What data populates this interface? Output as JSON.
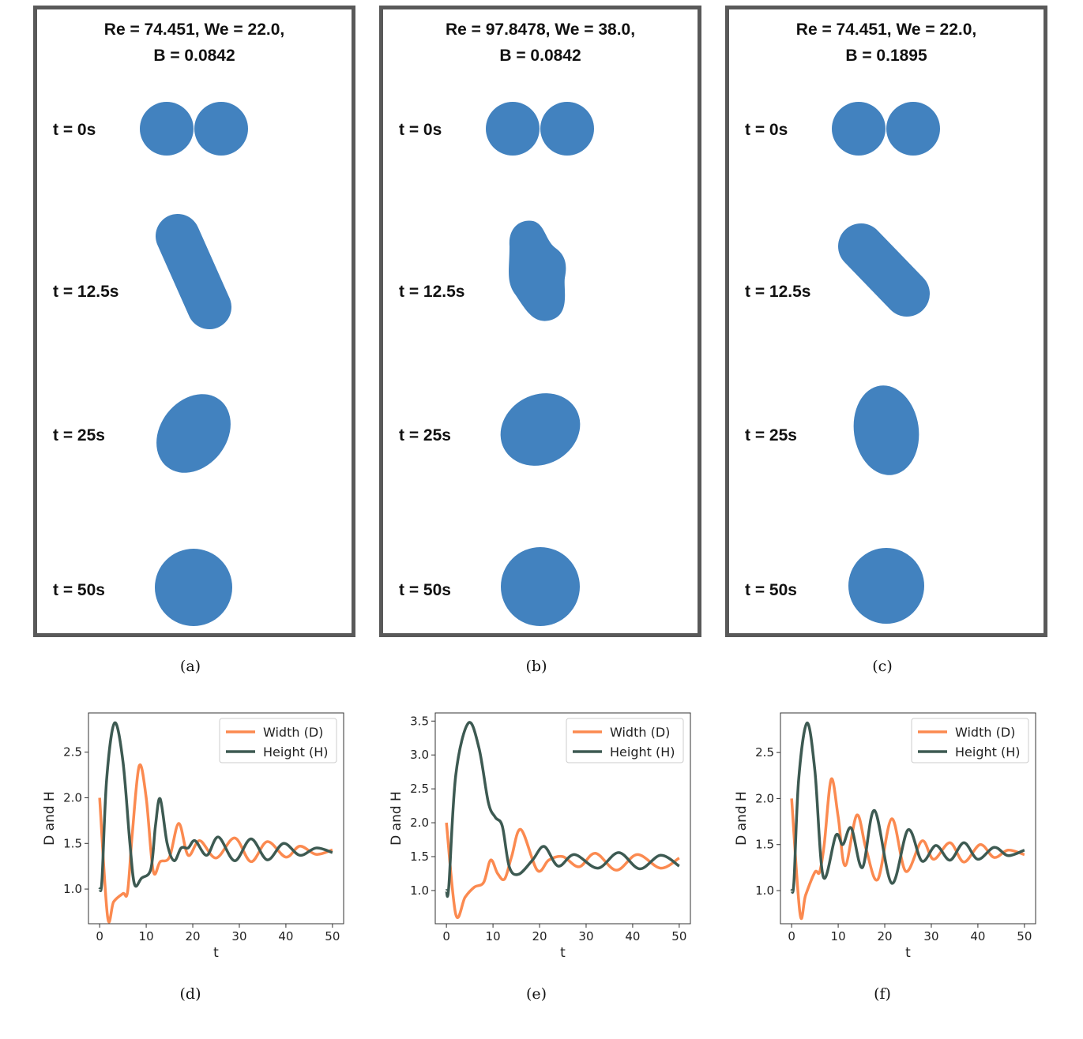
{
  "panels": [
    {
      "id": "a",
      "title_line1": "Re = 74.451, We = 22.0,",
      "title_line2": "B = 0.0842",
      "times": [
        "t = 0s",
        "t = 12.5s",
        "t = 25s",
        "t = 50s"
      ],
      "caption": "(a)"
    },
    {
      "id": "b",
      "title_line1": "Re = 97.8478, We = 38.0,",
      "title_line2": "B = 0.0842",
      "times": [
        "t = 0s",
        "t = 12.5s",
        "t = 25s",
        "t = 50s"
      ],
      "caption": "(b)"
    },
    {
      "id": "c",
      "title_line1": "Re = 74.451, We = 22.0,",
      "title_line2": "B = 0.1895",
      "times": [
        "t = 0s",
        "t = 12.5s",
        "t = 25s",
        "t = 50s"
      ],
      "caption": "(c)"
    }
  ],
  "droplet_color": "#4282bf",
  "chart_data": [
    {
      "type": "line",
      "caption": "(d)",
      "xlabel": "t",
      "ylabel": "D and H",
      "xlim": [
        -2.4,
        52.4
      ],
      "ylim": [
        0.62,
        2.93
      ],
      "xticks": [
        0,
        10,
        20,
        30,
        40,
        50
      ],
      "yticks": [
        "1.0",
        "1.5",
        "2.0",
        "2.5"
      ],
      "legend": "top-right",
      "grid": false,
      "series": [
        {
          "name": "Width (D)",
          "color": "#fb8a50",
          "points": [
            [
              0,
              2.0
            ],
            [
              1.7,
              0.7
            ],
            [
              3,
              0.86
            ],
            [
              5,
              0.95
            ],
            [
              6,
              0.97
            ],
            [
              7,
              1.6
            ],
            [
              8.5,
              2.35
            ],
            [
              10,
              2.0
            ],
            [
              11.5,
              1.2
            ],
            [
              13,
              1.3
            ],
            [
              15,
              1.35
            ],
            [
              17,
              1.72
            ],
            [
              19,
              1.37
            ],
            [
              21.5,
              1.53
            ],
            [
              25,
              1.34
            ],
            [
              29,
              1.56
            ],
            [
              32.5,
              1.3
            ],
            [
              36,
              1.52
            ],
            [
              40,
              1.35
            ],
            [
              43,
              1.47
            ],
            [
              46.5,
              1.38
            ],
            [
              50,
              1.43
            ]
          ]
        },
        {
          "name": "Height (H)",
          "color": "#3d5a52",
          "points": [
            [
              0,
              1.0
            ],
            [
              0.5,
              1.1
            ],
            [
              1.5,
              2.2
            ],
            [
              3.2,
              2.82
            ],
            [
              5,
              2.4
            ],
            [
              6.5,
              1.5
            ],
            [
              7.5,
              1.05
            ],
            [
              9,
              1.12
            ],
            [
              11,
              1.22
            ],
            [
              12,
              1.7
            ],
            [
              13,
              1.99
            ],
            [
              14.5,
              1.5
            ],
            [
              16,
              1.31
            ],
            [
              17.5,
              1.45
            ],
            [
              19,
              1.45
            ],
            [
              20.5,
              1.53
            ],
            [
              23,
              1.37
            ],
            [
              25.5,
              1.57
            ],
            [
              29,
              1.31
            ],
            [
              32.5,
              1.55
            ],
            [
              36,
              1.32
            ],
            [
              39.5,
              1.5
            ],
            [
              43,
              1.37
            ],
            [
              46.5,
              1.45
            ],
            [
              50,
              1.4
            ]
          ]
        }
      ]
    },
    {
      "type": "line",
      "caption": "(e)",
      "xlabel": "t",
      "ylabel": "D and H",
      "xlim": [
        -2.4,
        52.4
      ],
      "ylim": [
        0.51,
        3.62
      ],
      "xticks": [
        0,
        10,
        20,
        30,
        40,
        50
      ],
      "yticks": [
        "1.0",
        "1.5",
        "2.0",
        "2.5",
        "3.0",
        "3.5"
      ],
      "legend": "top-right",
      "grid": false,
      "series": [
        {
          "name": "Width (D)",
          "color": "#fb8a50",
          "points": [
            [
              0,
              2.0
            ],
            [
              2,
              0.65
            ],
            [
              4,
              0.9
            ],
            [
              6,
              1.05
            ],
            [
              8,
              1.12
            ],
            [
              9.5,
              1.45
            ],
            [
              11,
              1.25
            ],
            [
              12.5,
              1.17
            ],
            [
              14,
              1.5
            ],
            [
              16,
              1.9
            ],
            [
              19.5,
              1.3
            ],
            [
              22,
              1.45
            ],
            [
              25,
              1.5
            ],
            [
              28.5,
              1.35
            ],
            [
              32,
              1.55
            ],
            [
              36.5,
              1.3
            ],
            [
              41,
              1.53
            ],
            [
              46,
              1.33
            ],
            [
              50,
              1.48
            ]
          ]
        },
        {
          "name": "Height (H)",
          "color": "#3d5a52",
          "points": [
            [
              0,
              1.0
            ],
            [
              0.5,
              1.05
            ],
            [
              2,
              2.7
            ],
            [
              4.7,
              3.47
            ],
            [
              7,
              3.1
            ],
            [
              9,
              2.3
            ],
            [
              10.5,
              2.08
            ],
            [
              12,
              1.95
            ],
            [
              13.5,
              1.35
            ],
            [
              15.5,
              1.24
            ],
            [
              18.5,
              1.45
            ],
            [
              21,
              1.65
            ],
            [
              24,
              1.36
            ],
            [
              27.5,
              1.53
            ],
            [
              32.5,
              1.33
            ],
            [
              37,
              1.56
            ],
            [
              41.5,
              1.32
            ],
            [
              46,
              1.52
            ],
            [
              50,
              1.36
            ]
          ]
        }
      ]
    },
    {
      "type": "line",
      "caption": "(f)",
      "xlabel": "t",
      "ylabel": "D and H",
      "xlim": [
        -2.4,
        52.4
      ],
      "ylim": [
        0.64,
        2.93
      ],
      "xticks": [
        0,
        10,
        20,
        30,
        40,
        50
      ],
      "yticks": [
        "1.0",
        "1.5",
        "2.0",
        "2.5"
      ],
      "legend": "top-right",
      "grid": false,
      "series": [
        {
          "name": "Width (D)",
          "color": "#fb8a50",
          "points": [
            [
              0,
              2.0
            ],
            [
              1.8,
              0.75
            ],
            [
              3,
              0.95
            ],
            [
              5,
              1.2
            ],
            [
              6,
              1.2
            ],
            [
              7,
              1.5
            ],
            [
              8.5,
              2.21
            ],
            [
              10,
              1.8
            ],
            [
              11.5,
              1.27
            ],
            [
              14,
              1.82
            ],
            [
              16,
              1.45
            ],
            [
              18.5,
              1.12
            ],
            [
              21.5,
              1.78
            ],
            [
              24.5,
              1.21
            ],
            [
              28,
              1.54
            ],
            [
              30.5,
              1.34
            ],
            [
              34,
              1.52
            ],
            [
              37,
              1.31
            ],
            [
              40.5,
              1.5
            ],
            [
              43.5,
              1.36
            ],
            [
              46.5,
              1.44
            ],
            [
              50,
              1.39
            ]
          ]
        },
        {
          "name": "Height (H)",
          "color": "#3d5a52",
          "points": [
            [
              0,
              1.0
            ],
            [
              0.5,
              1.1
            ],
            [
              1.5,
              2.2
            ],
            [
              3.3,
              2.82
            ],
            [
              5,
              2.3
            ],
            [
              6.8,
              1.15
            ],
            [
              9.5,
              1.6
            ],
            [
              11,
              1.5
            ],
            [
              12.8,
              1.68
            ],
            [
              15.2,
              1.25
            ],
            [
              17.8,
              1.87
            ],
            [
              21.5,
              1.08
            ],
            [
              25,
              1.66
            ],
            [
              28,
              1.32
            ],
            [
              31,
              1.49
            ],
            [
              34,
              1.33
            ],
            [
              37,
              1.52
            ],
            [
              40,
              1.34
            ],
            [
              43.5,
              1.47
            ],
            [
              46.5,
              1.38
            ],
            [
              50,
              1.44
            ]
          ]
        }
      ]
    }
  ]
}
